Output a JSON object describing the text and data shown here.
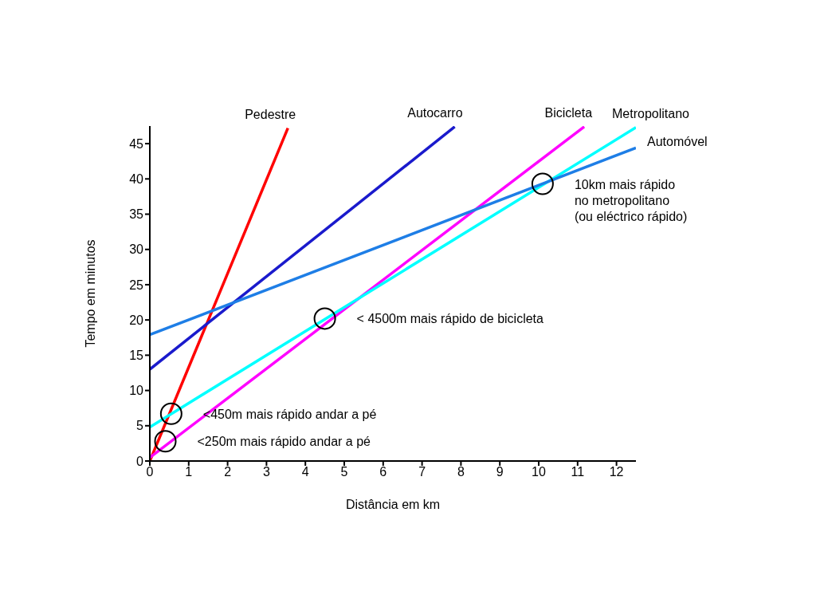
{
  "chart_data": {
    "type": "line",
    "xlabel": "Distância em km",
    "ylabel": "Tempo em minutos",
    "xlim": [
      0,
      12.5
    ],
    "ylim": [
      0,
      47.5
    ],
    "xticks": [
      0,
      1,
      2,
      3,
      4,
      5,
      6,
      7,
      8,
      9,
      10,
      11,
      12
    ],
    "yticks": [
      0,
      5,
      10,
      15,
      20,
      25,
      30,
      35,
      40,
      45
    ],
    "grid": false,
    "legend": false,
    "marker": "none",
    "line_style": "solid",
    "series": [
      {
        "name": "Pedestre",
        "color": "#ff0000",
        "x": [
          0,
          3.55
        ],
        "values": [
          0,
          47.2
        ]
      },
      {
        "name": "Autocarro",
        "color": "#1a1acc",
        "x": [
          0,
          7.84
        ],
        "values": [
          13,
          47.4
        ]
      },
      {
        "name": "Bicicleta",
        "color": "#ff00ff",
        "x": [
          0,
          11.17
        ],
        "values": [
          0.5,
          47.4
        ]
      },
      {
        "name": "Metropolitano",
        "color": "#00ffff",
        "x": [
          0,
          12.5
        ],
        "values": [
          4.8,
          47.3
        ]
      },
      {
        "name": "Automóvel",
        "color": "#1e7ee6",
        "x": [
          0,
          12.5
        ],
        "values": [
          17.9,
          44.4
        ]
      }
    ],
    "annotations": [
      {
        "text": "10km mais rápido\nno metropolitano\n(ou eléctrico rápido)",
        "x": 10.1,
        "y": 39.3
      },
      {
        "text": "< 4500m mais rápido de bicicleta",
        "x": 4.5,
        "y": 20.2
      },
      {
        "text": "<450m mais rápido andar a pé",
        "x": 0.55,
        "y": 6.7
      },
      {
        "text": "<250m mais rápido andar a pé",
        "x": 0.4,
        "y": 2.8
      }
    ]
  }
}
